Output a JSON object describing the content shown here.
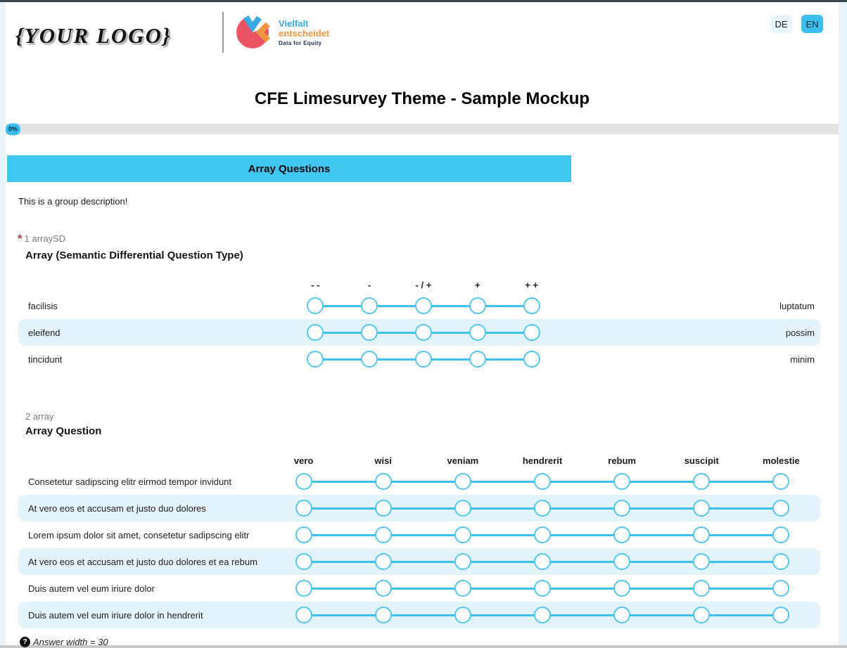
{
  "page": {
    "title": "CFE Limesurvey Theme - Sample Mockup"
  },
  "header": {
    "placeholder_logo": "{YOUR LOGO}",
    "brand": {
      "line1": "Vielfalt",
      "line2": "entscheidet",
      "tagline": "Data for Equity"
    },
    "language_switch": [
      {
        "code": "DE",
        "active": false
      },
      {
        "code": "EN",
        "active": true
      }
    ]
  },
  "progress": {
    "percent_label": "0%",
    "value": 0
  },
  "group": {
    "title": "Array Questions",
    "description": "This is a group description!"
  },
  "questions": [
    {
      "number": "1",
      "code": "arraySD",
      "mandatory": true,
      "title": "Array (Semantic Differential Question Type)",
      "columns": [
        "- -",
        "-",
        "- / +",
        "+",
        "+ +"
      ],
      "rows": [
        {
          "left": "facilisis",
          "right": "luptatum"
        },
        {
          "left": "eleifend",
          "right": "possim"
        },
        {
          "left": "tincidunt",
          "right": "minim"
        }
      ]
    },
    {
      "number": "2",
      "code": "array",
      "mandatory": false,
      "title": "Array Question",
      "columns": [
        "vero",
        "wisi",
        "veniam",
        "hendrerit",
        "rebum",
        "suscipit",
        "molestie"
      ],
      "rows": [
        {
          "left": "Consetetur sadipscing elitr eirmod tempor invidunt"
        },
        {
          "left": "At vero eos et accusam et justo duo dolores"
        },
        {
          "left": "Lorem ipsum dolor sit amet, consetetur sadipscing elitr"
        },
        {
          "left": "At vero eos et accusam et justo duo dolores et ea rebum"
        },
        {
          "left": "Duis autem vel eum iriure dolor"
        },
        {
          "left": "Duis autem vel eum iriure dolor in hendrerit"
        }
      ],
      "help": "Answer width = 30"
    }
  ],
  "colors": {
    "accent": "#3bbfef",
    "group_header": "#41c6f0",
    "row_highlight": "#e3f3fc",
    "radio_border": "#52c6f2",
    "scale_line": "#3fc1f0",
    "brand_blue": "#3aa9df",
    "brand_orange": "#f0953f",
    "brand_red": "#ea5364",
    "mandatory_red": "#a94442"
  }
}
